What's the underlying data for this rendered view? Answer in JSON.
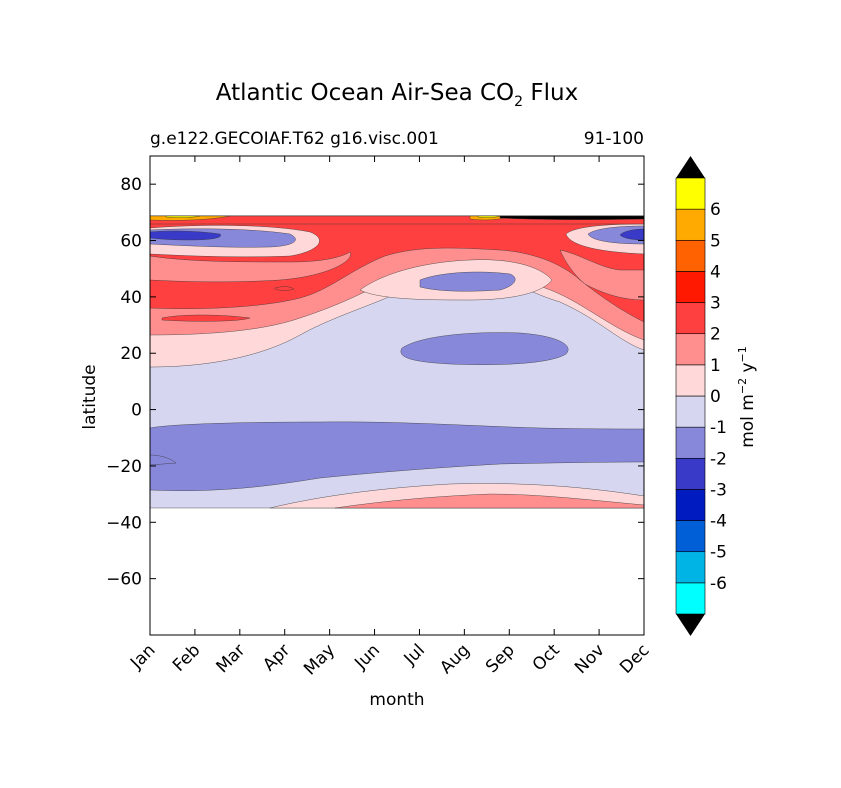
{
  "chart_data": {
    "type": "heatmap",
    "title_main": "Atlantic Ocean Air-Sea CO",
    "title_sub": "2",
    "title_tail": " Flux",
    "subtitle_left": "g.e122.GECOIAF.T62 g16.visc.001",
    "subtitle_right": "91-100",
    "xlabel": "month",
    "ylabel": "latitude",
    "x_categories": [
      "Jan",
      "Feb",
      "Mar",
      "Apr",
      "May",
      "Jun",
      "Jul",
      "Aug",
      "Sep",
      "Oct",
      "Nov",
      "Dec"
    ],
    "y_ticks": [
      80,
      60,
      40,
      20,
      0,
      -20,
      -40,
      -60
    ],
    "y_tick_labels": [
      "80",
      "60",
      "40",
      "20",
      "0",
      "−20",
      "−40",
      "−60"
    ],
    "ylim": [
      -80,
      90
    ],
    "data_lat_range": [
      -34,
      68
    ],
    "colorbar": {
      "label_text": "mol m",
      "label_exp1": "−2",
      "label_mid": "  y",
      "label_exp2": "−1",
      "levels": [
        -7,
        -6,
        -5,
        -4,
        -3,
        -2,
        -1,
        0,
        1,
        2,
        3,
        4,
        5,
        6,
        7
      ],
      "tick_labels": [
        "6",
        "5",
        "4",
        "3",
        "2",
        "1",
        "0",
        "-1",
        "-2",
        "-3",
        "-4",
        "-5",
        "-6"
      ],
      "colors": [
        "#00ffff",
        "#00b4e6",
        "#005fd6",
        "#001bbf",
        "#3a3ac8",
        "#8888db",
        "#d6d6f0",
        "#ffd9d9",
        "#ff8f8f",
        "#ff4040",
        "#ff1900",
        "#ff6200",
        "#ffaa00",
        "#ffff00"
      ],
      "extend_color": "#000000"
    },
    "regions": [
      {
        "name": "nh-positive-band",
        "value_range": [
          0,
          1
        ],
        "color": "#ffd9d9"
      },
      {
        "name": "nh-strong-band",
        "value_range": [
          2,
          3
        ],
        "color": "#ff4040"
      },
      {
        "name": "subpolar-negative-core",
        "value_range": [
          -3,
          -2
        ],
        "color": "#3a3ac8"
      },
      {
        "name": "tropical-negative",
        "value_range": [
          -2,
          -1
        ],
        "color": "#8888db"
      },
      {
        "name": "sh-positive",
        "value_range": [
          1,
          2
        ],
        "color": "#ff8f8f"
      }
    ]
  }
}
